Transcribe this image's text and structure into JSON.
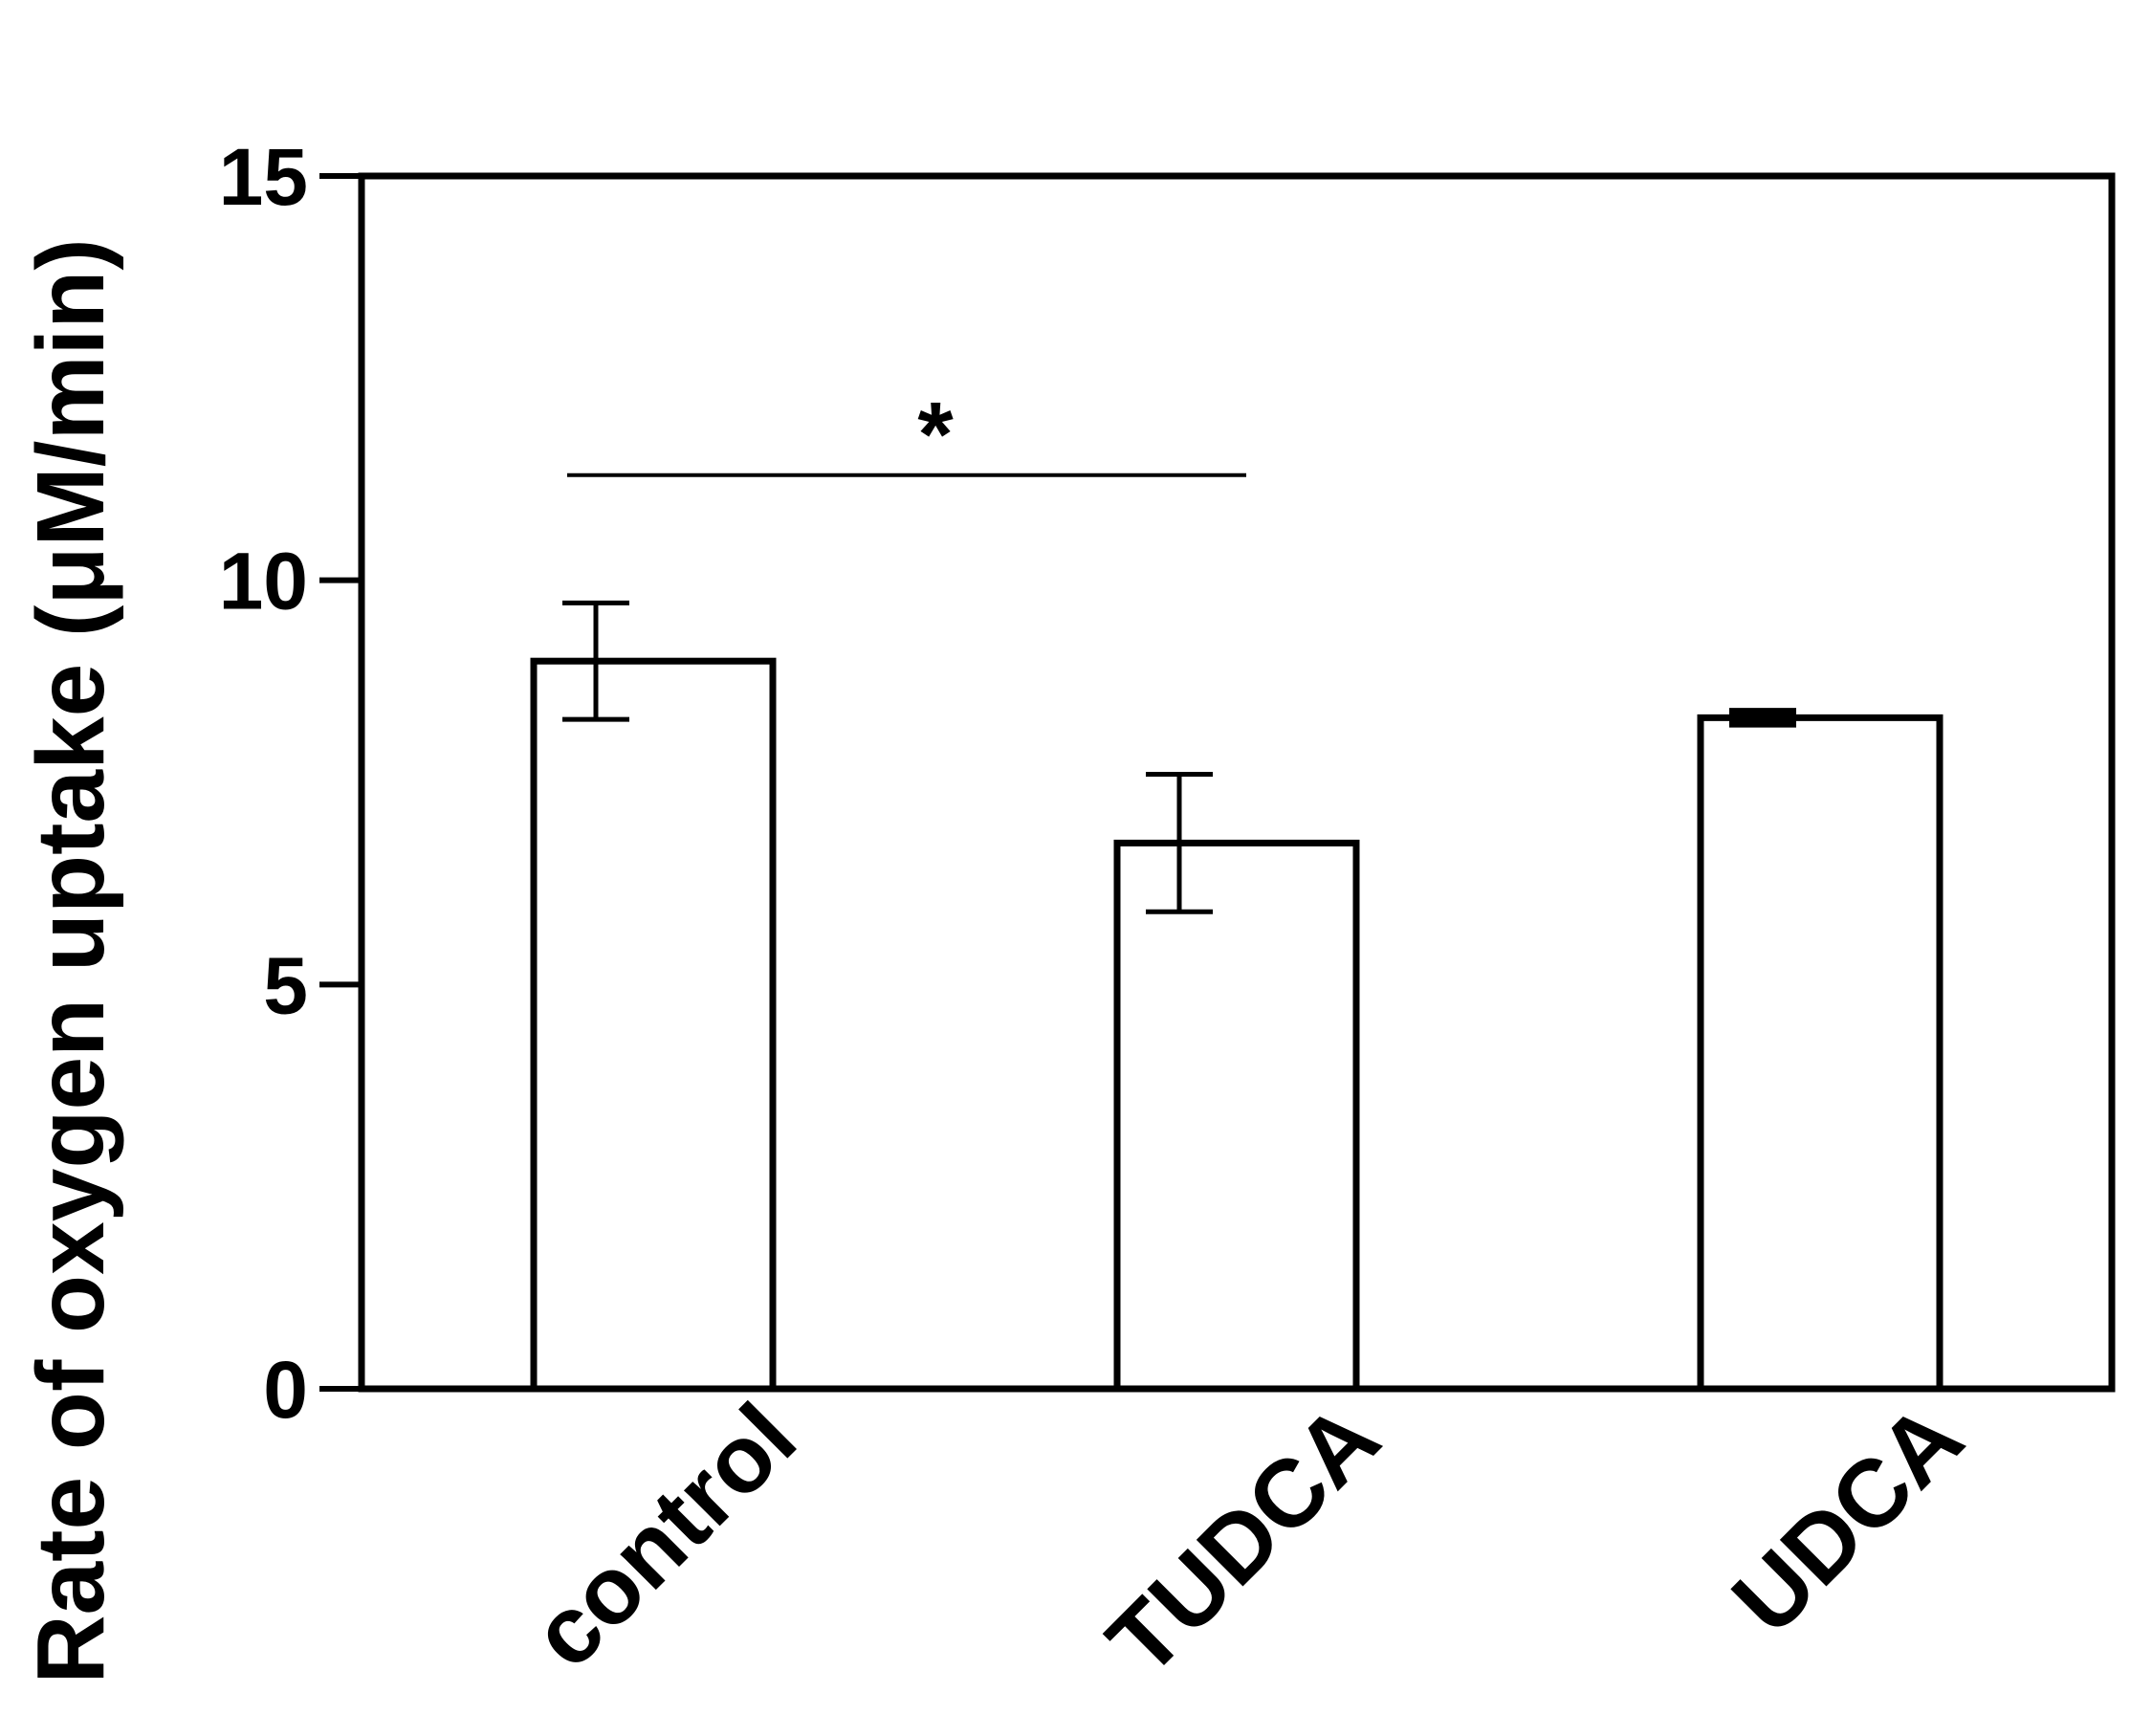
{
  "chart_data": {
    "type": "bar",
    "title": "",
    "xlabel": "",
    "ylabel": "Rate of oxygen uptake (μM/min)",
    "categories": [
      "control",
      "TUDCA",
      "UDCA"
    ],
    "values": [
      9.0,
      6.75,
      8.3
    ],
    "error": [
      0.72,
      0.85,
      0.05
    ],
    "ylim": [
      0,
      15
    ],
    "yticks": [
      0,
      5,
      10,
      15
    ],
    "grid": false,
    "bar_fill": "#ffffff",
    "bar_stroke": "#000000",
    "annotations": [
      {
        "type": "significance",
        "from": "control",
        "to": "TUDCA",
        "y": 11.3,
        "label": "*"
      }
    ]
  }
}
